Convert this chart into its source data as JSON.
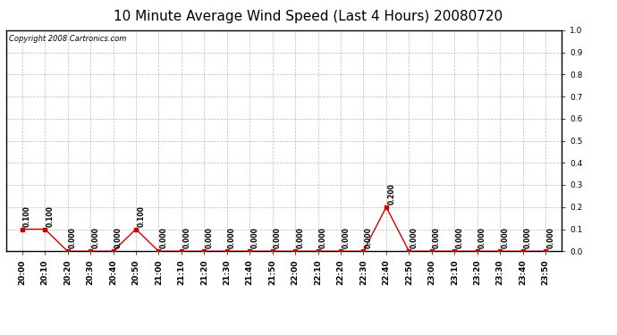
{
  "title": "10 Minute Average Wind Speed (Last 4 Hours) 20080720",
  "copyright_text": "Copyright 2008 Cartronics.com",
  "x_labels": [
    "20:00",
    "20:10",
    "20:20",
    "20:30",
    "20:40",
    "20:50",
    "21:00",
    "21:10",
    "21:20",
    "21:30",
    "21:40",
    "21:50",
    "22:00",
    "22:10",
    "22:20",
    "22:30",
    "22:40",
    "22:50",
    "23:00",
    "23:10",
    "23:20",
    "23:30",
    "23:40",
    "23:50"
  ],
  "y_values": [
    0.1,
    0.1,
    0.0,
    0.0,
    0.0,
    0.1,
    0.0,
    0.0,
    0.0,
    0.0,
    0.0,
    0.0,
    0.0,
    0.0,
    0.0,
    0.0,
    0.2,
    0.0,
    0.0,
    0.0,
    0.0,
    0.0,
    0.0,
    0.0
  ],
  "line_color": "#cc0000",
  "marker_color": "#cc0000",
  "background_color": "#ffffff",
  "plot_bg_color": "#ffffff",
  "grid_color": "#bbbbbb",
  "ylim": [
    0.0,
    1.0
  ],
  "yticks": [
    0.0,
    0.1,
    0.2,
    0.3,
    0.4,
    0.5,
    0.6,
    0.7,
    0.8,
    0.9,
    1.0
  ],
  "title_fontsize": 11,
  "annotation_fontsize": 5.5,
  "copyright_fontsize": 6.0,
  "tick_fontsize": 6.5
}
